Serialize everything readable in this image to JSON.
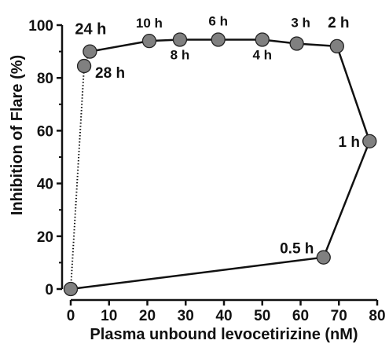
{
  "chart_data": {
    "type": "scatter",
    "title": "",
    "xlabel": "Plasma unbound levocetirizine (nM)",
    "ylabel": "Inhibition of Flare (%)",
    "xlim": [
      0,
      80
    ],
    "ylim": [
      0,
      100
    ],
    "x_ticks": [
      "0",
      "10",
      "20",
      "30",
      "40",
      "50",
      "60",
      "70",
      "80"
    ],
    "y_ticks": [
      "0",
      "20",
      "40",
      "60",
      "80",
      "100"
    ],
    "grid": false,
    "legend": "none",
    "marker_color": "#808080",
    "points": [
      {
        "label": "",
        "x": 0,
        "y": 0
      },
      {
        "label": "0.5 h",
        "x": 66,
        "y": 12
      },
      {
        "label": "1 h",
        "x": 78,
        "y": 56
      },
      {
        "label": "2 h",
        "x": 69.5,
        "y": 92
      },
      {
        "label": "3 h",
        "x": 59,
        "y": 93
      },
      {
        "label": "4 h",
        "x": 50,
        "y": 94.5
      },
      {
        "label": "6 h",
        "x": 38.5,
        "y": 94.5
      },
      {
        "label": "8 h",
        "x": 28.5,
        "y": 94.5
      },
      {
        "label": "10 h",
        "x": 20.5,
        "y": 94
      },
      {
        "label": "24 h",
        "x": 5,
        "y": 90
      },
      {
        "label": "28 h",
        "x": 3.5,
        "y": 84.5
      }
    ],
    "solid_path": [
      "",
      "0.5 h",
      "1 h",
      "2 h",
      "3 h",
      "4 h",
      "6 h",
      "8 h",
      "10 h",
      "24 h"
    ],
    "dotted_path": [
      "24 h",
      "28 h",
      "0"
    ]
  }
}
